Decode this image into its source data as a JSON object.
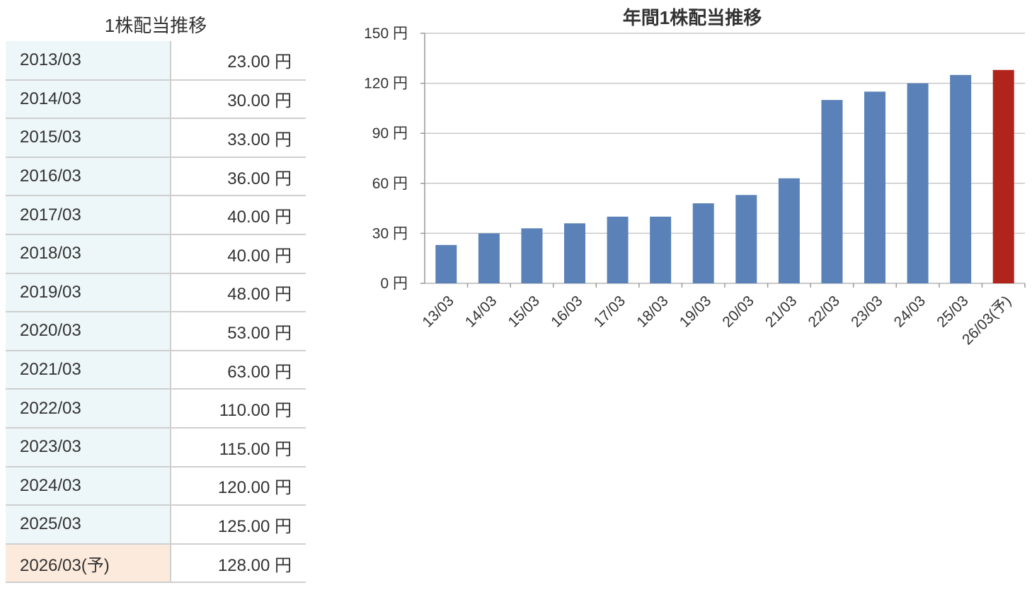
{
  "table": {
    "title": "1株配当推移",
    "rows": [
      {
        "period": "2013/03",
        "amount": "23.00 円"
      },
      {
        "period": "2014/03",
        "amount": "30.00 円"
      },
      {
        "period": "2015/03",
        "amount": "33.00 円"
      },
      {
        "period": "2016/03",
        "amount": "36.00 円"
      },
      {
        "period": "2017/03",
        "amount": "40.00 円"
      },
      {
        "period": "2018/03",
        "amount": "40.00 円"
      },
      {
        "period": "2019/03",
        "amount": "48.00 円"
      },
      {
        "period": "2020/03",
        "amount": "53.00 円"
      },
      {
        "period": "2021/03",
        "amount": "63.00 円"
      },
      {
        "period": "2022/03",
        "amount": "110.00 円"
      },
      {
        "period": "2023/03",
        "amount": "115.00 円"
      },
      {
        "period": "2024/03",
        "amount": "120.00 円"
      },
      {
        "period": "2025/03",
        "amount": "125.00 円"
      },
      {
        "period": "2026/03(予)",
        "amount": "128.00 円",
        "forecast": true
      }
    ]
  },
  "chart_data": {
    "type": "bar",
    "title": "年間1株配当推移",
    "categories": [
      "13/03",
      "14/03",
      "15/03",
      "16/03",
      "17/03",
      "18/03",
      "19/03",
      "20/03",
      "21/03",
      "22/03",
      "23/03",
      "24/03",
      "25/03",
      "26/03(予)"
    ],
    "values": [
      23,
      30,
      33,
      36,
      40,
      40,
      48,
      53,
      63,
      110,
      115,
      120,
      125,
      128
    ],
    "forecast_index": 13,
    "ylim": [
      0,
      150
    ],
    "yticks": [
      0,
      30,
      60,
      90,
      120,
      150
    ],
    "ytick_labels": [
      "0 円",
      "30 円",
      "60 円",
      "90 円",
      "120 円",
      "150 円"
    ],
    "xlabel": "",
    "ylabel": "",
    "grid": true,
    "colors": {
      "bar": "#5a82b8",
      "forecast_bar": "#b0241b",
      "grid": "#c8c8c8"
    }
  }
}
